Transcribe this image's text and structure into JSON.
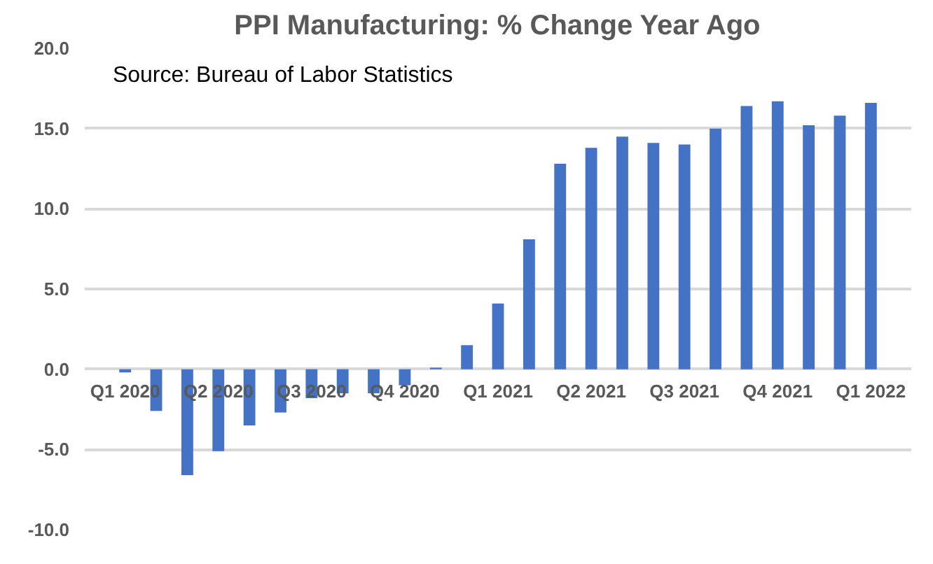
{
  "chart_data": {
    "type": "bar",
    "title": "PPI Manufacturing: % Change Year Ago",
    "categories": [
      "Q1 2020",
      null,
      null,
      "Q2 2020",
      null,
      null,
      "Q3 2020",
      null,
      null,
      "Q4 2020",
      null,
      null,
      "Q1 2021",
      null,
      null,
      "Q2 2021",
      null,
      null,
      "Q3 2021",
      null,
      null,
      "Q4 2021",
      null,
      null,
      "Q1 2022"
    ],
    "series": [
      {
        "color": "#4472c4",
        "values": [
          -0.2,
          -2.6,
          -6.6,
          -5.1,
          -3.5,
          -2.7,
          -1.8,
          -1.5,
          -1.5,
          -1.0,
          0.1,
          1.5,
          4.1,
          8.1,
          12.8,
          13.8,
          14.5,
          14.1,
          14.0,
          15.0,
          16.4,
          16.7,
          15.2,
          15.8,
          16.6
        ]
      }
    ],
    "ylim": [
      -10,
      20
    ],
    "yticks": [
      {
        "value": -10,
        "label": "-10.0"
      },
      {
        "value": -5,
        "label": "-5.0"
      },
      {
        "value": 0,
        "label": "0.0"
      },
      {
        "value": 5,
        "label": "5.0"
      },
      {
        "value": 10,
        "label": "10.0"
      },
      {
        "value": 15,
        "label": "15.0"
      },
      {
        "value": 20,
        "label": "20.0"
      }
    ],
    "grid": "y",
    "annotations": [
      "Source: Bureau of Labor Statistics"
    ]
  }
}
